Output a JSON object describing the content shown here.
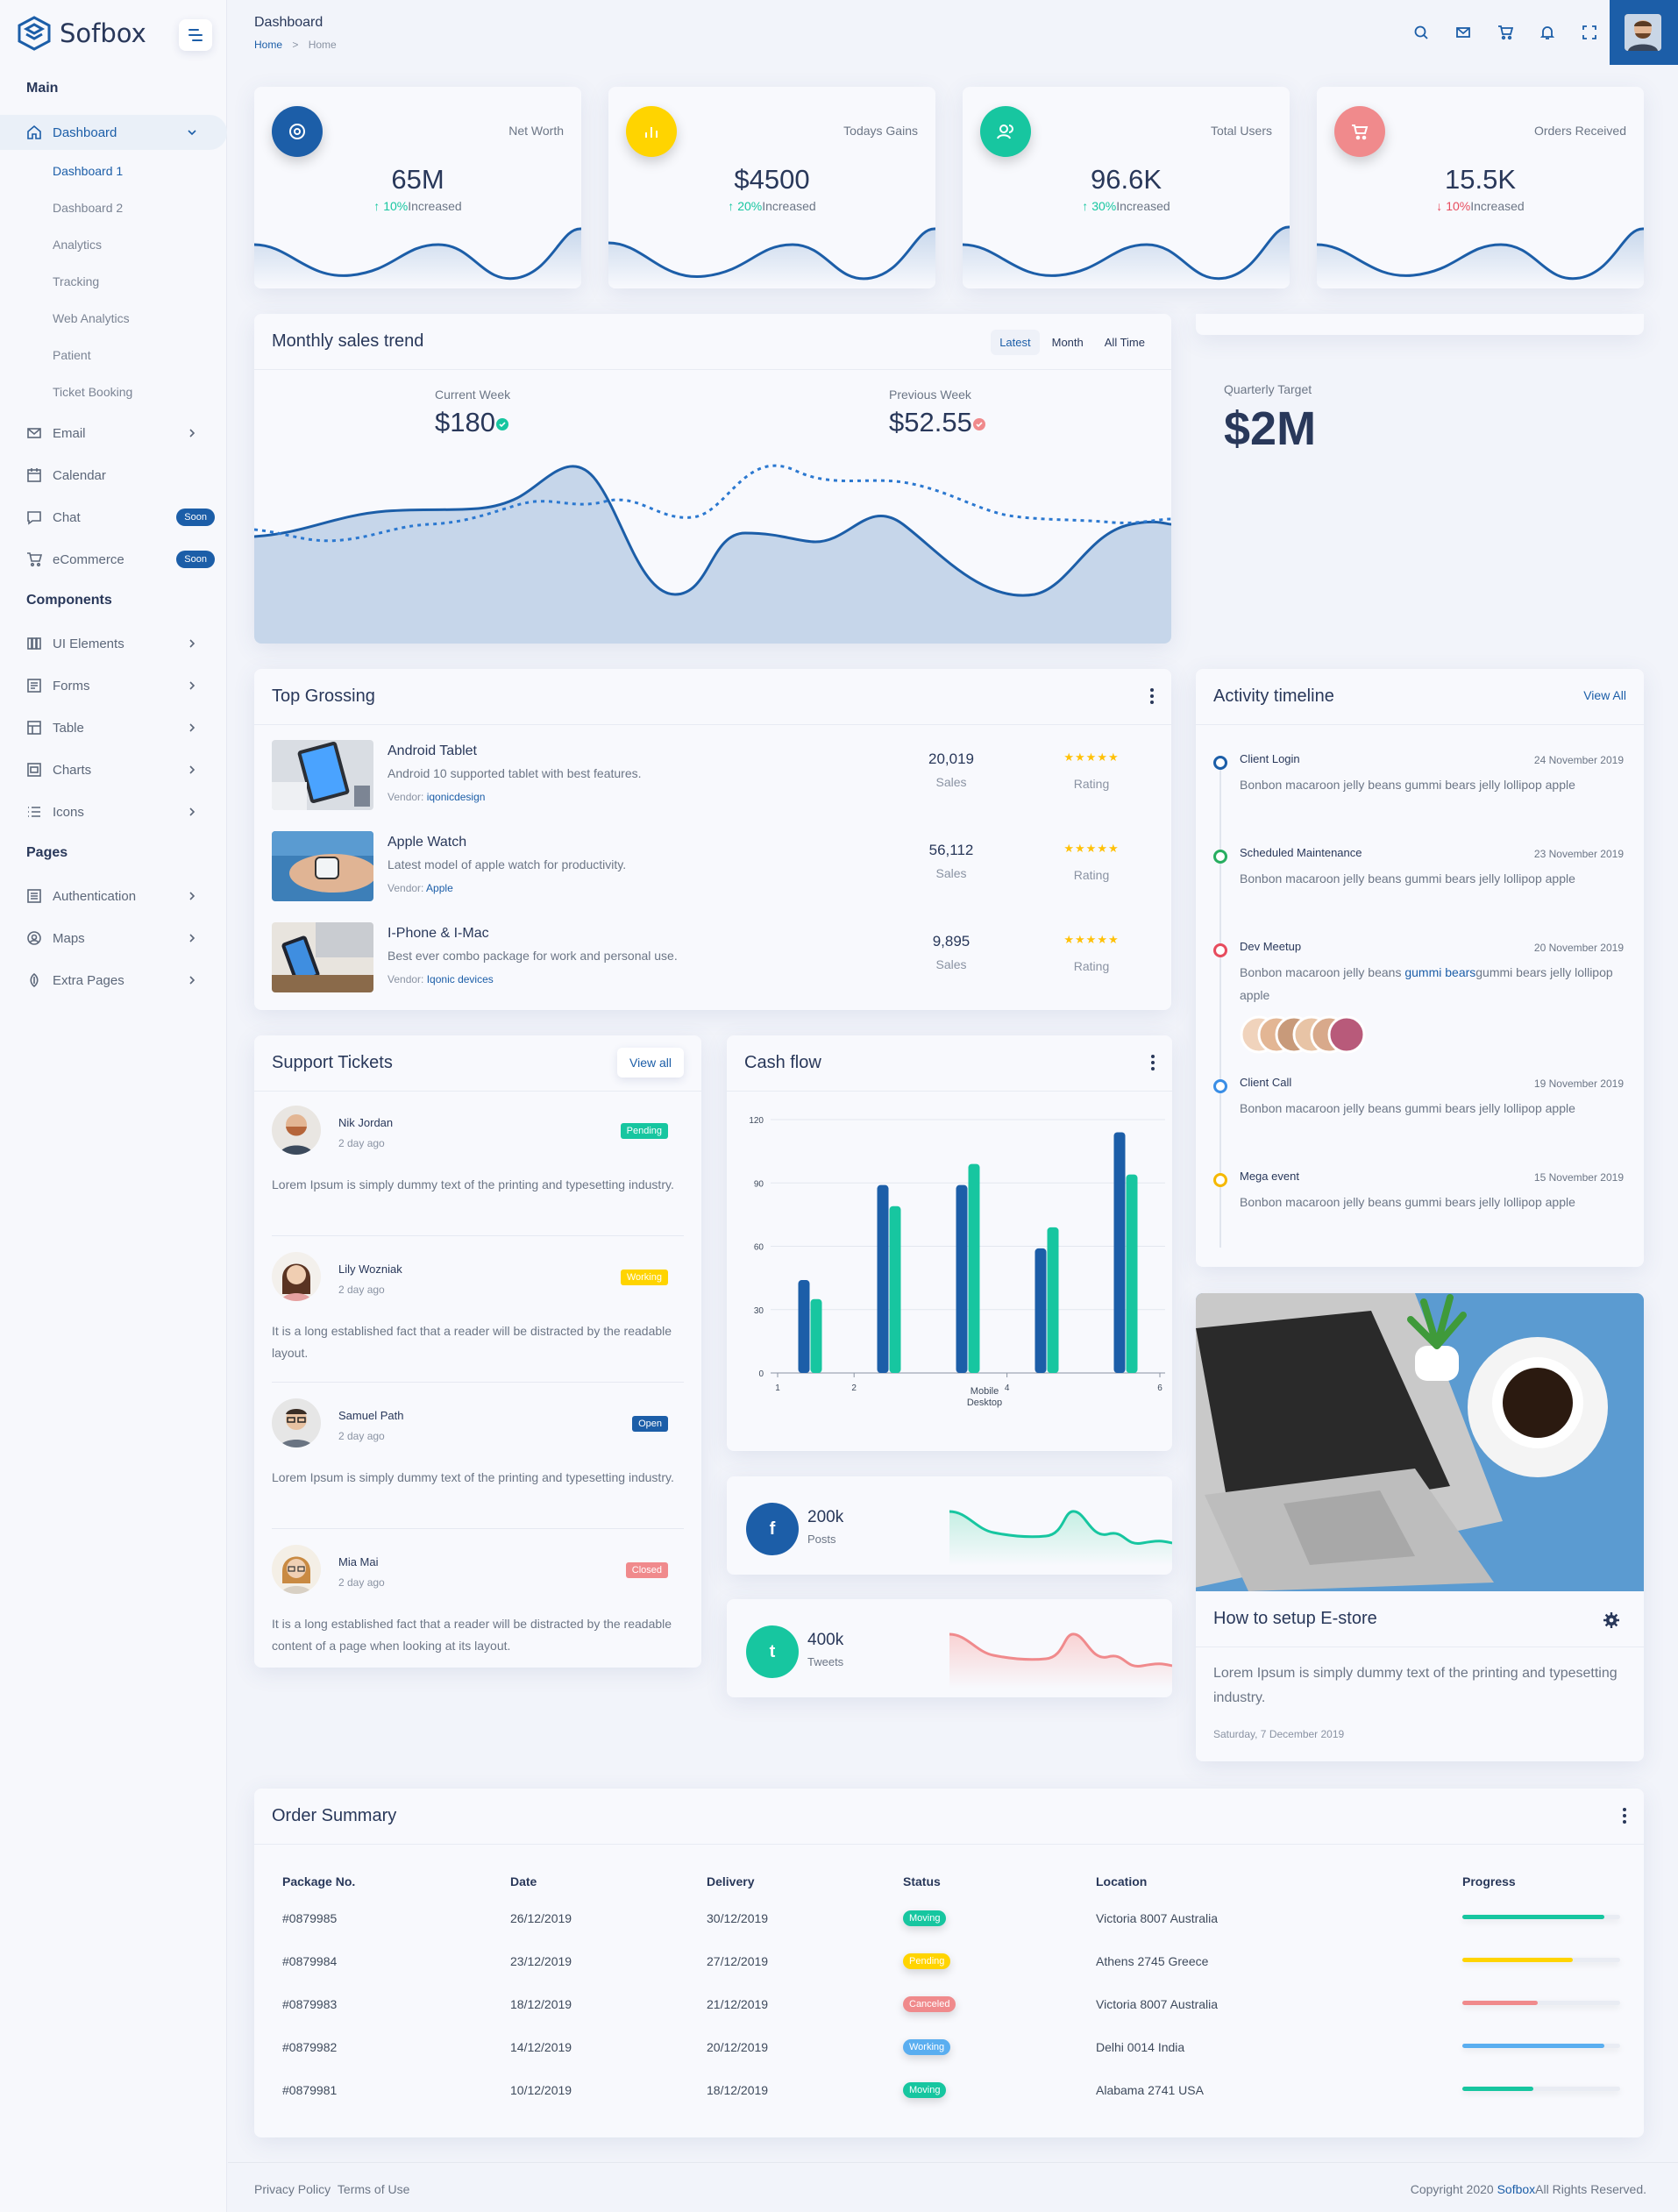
{
  "brand": {
    "name": "Sofbox"
  },
  "header": {
    "title": "Dashboard",
    "crumb_home": "Home",
    "crumb_sep": ">",
    "crumb_current": "Home"
  },
  "sidebar": {
    "section_main": "Main",
    "dashboard": "Dashboard",
    "dashboard_subs": [
      "Dashboard 1",
      "Dashboard 2",
      "Analytics",
      "Tracking",
      "Web Analytics",
      "Patient",
      "Ticket Booking"
    ],
    "email": "Email",
    "calendar": "Calendar",
    "chat": "Chat",
    "ecommerce": "eCommerce",
    "soon": "Soon",
    "section_components": "Components",
    "ui_elements": "UI Elements",
    "forms": "Forms",
    "table": "Table",
    "charts": "Charts",
    "icons": "Icons",
    "section_pages": "Pages",
    "authentication": "Authentication",
    "maps": "Maps",
    "extra_pages": "Extra Pages"
  },
  "stats": [
    {
      "label": "Net Worth",
      "value": "65M",
      "arrow": "↑",
      "pct": "10%",
      "word": "Increased",
      "color": "#1c5ea8",
      "trend": "up"
    },
    {
      "label": "Todays Gains",
      "value": "$4500",
      "arrow": "↑",
      "pct": "20%",
      "word": "Increased",
      "color": "#ffd400",
      "trend": "up"
    },
    {
      "label": "Total Users",
      "value": "96.6K",
      "arrow": "↑",
      "pct": "30%",
      "word": "Increased",
      "color": "#17c6a0",
      "trend": "up"
    },
    {
      "label": "Orders Received",
      "value": "15.5K",
      "arrow": "↓",
      "pct": "10%",
      "word": "Increased",
      "color": "#f08a8c",
      "trend": "down"
    }
  ],
  "sales_trend": {
    "title": "Monthly sales trend",
    "tabs": [
      "Latest",
      "Month",
      "All Time"
    ],
    "current_label": "Current Week",
    "current_value": "$180",
    "previous_label": "Previous Week",
    "previous_value": "$52.55"
  },
  "quarterly": {
    "label": "Quarterly Target",
    "value": "$2M"
  },
  "top_grossing": {
    "title": "Top Grossing",
    "items": [
      {
        "name": "Android Tablet",
        "desc": "Android 10 supported tablet with best features.",
        "vendor_label": "Vendor:",
        "vendor": "iqonicdesign",
        "sales": "20,019",
        "sales_label": "Sales",
        "stars": "★★★★★",
        "rating_label": "Rating"
      },
      {
        "name": "Apple Watch",
        "desc": "Latest model of apple watch for productivity.",
        "vendor_label": "Vendor:",
        "vendor": "Apple",
        "sales": "56,112",
        "sales_label": "Sales",
        "stars": "★★★★★",
        "rating_label": "Rating"
      },
      {
        "name": "I-Phone & I-Mac",
        "desc": "Best ever combo package for work and personal use.",
        "vendor_label": "Vendor:",
        "vendor": "Iqonic devices",
        "sales": "9,895",
        "sales_label": "Sales",
        "stars": "★★★★★",
        "rating_label": "Rating"
      }
    ]
  },
  "timeline": {
    "title": "Activity timeline",
    "view_all": "View All",
    "items": [
      {
        "title": "Client Login",
        "date": "24 November 2019",
        "text": "Bonbon macaroon jelly beans gummi bears jelly lollipop apple",
        "color": "#1c5ea8"
      },
      {
        "title": "Scheduled Maintenance",
        "date": "23 November 2019",
        "text": "Bonbon macaroon jelly beans gummi bears jelly lollipop apple",
        "color": "#27ae60"
      },
      {
        "title": "Dev Meetup",
        "date": "20 November 2019",
        "text_a": "Bonbon macaroon jelly beans ",
        "text_hl": "gummi bears",
        "text_b": "gummi bears jelly lollipop apple",
        "color": "#e74c5e"
      },
      {
        "title": "Client Call",
        "date": "19 November 2019",
        "text": "Bonbon macaroon jelly beans gummi bears jelly lollipop apple",
        "color": "#3a8ee6"
      },
      {
        "title": "Mega event",
        "date": "15 November 2019",
        "text": "Bonbon macaroon jelly beans gummi bears jelly lollipop apple",
        "color": "#f5b800"
      }
    ]
  },
  "tickets": {
    "title": "Support Tickets",
    "view_all": "View all",
    "items": [
      {
        "name": "Nik Jordan",
        "time": "2 day ago",
        "status": "Pending",
        "status_color": "#17c6a0",
        "msg": "Lorem Ipsum is simply dummy text of the printing and typesetting industry."
      },
      {
        "name": "Lily Wozniak",
        "time": "2 day ago",
        "status": "Working",
        "status_color": "#ffd400",
        "msg": "It is a long established fact that a reader will be distracted by the readable layout."
      },
      {
        "name": "Samuel Path",
        "time": "2 day ago",
        "status": "Open",
        "status_color": "#1c5ea8",
        "msg": "Lorem Ipsum is simply dummy text of the printing and typesetting industry."
      },
      {
        "name": "Mia Mai",
        "time": "2 day ago",
        "status": "Closed",
        "status_color": "#f08a8c",
        "msg": "It is a long established fact that a reader will be distracted by the readable content of a page when looking at its layout."
      }
    ]
  },
  "cashflow": {
    "title": "Cash flow"
  },
  "chart_data": {
    "type": "bar",
    "x_tick_labels": [
      "1",
      "2",
      "4",
      "6"
    ],
    "x_caption_lines": [
      "Mobile",
      "Desktop"
    ],
    "y_ticks": [
      0,
      30,
      60,
      90,
      120
    ],
    "ylim": [
      0,
      120
    ],
    "grid": true,
    "series": [
      {
        "values": [
          44,
          89,
          89,
          59,
          114
        ],
        "color": "#1c5ea8"
      },
      {
        "values": [
          35,
          79,
          99,
          69,
          94
        ],
        "color": "#17c6a0"
      }
    ]
  },
  "social": [
    {
      "icon": "facebook-icon",
      "glyph": "f",
      "value": "200k",
      "label": "Posts",
      "color": "#1c5ea8",
      "line_color": "#17c6a0"
    },
    {
      "icon": "twitter-icon",
      "glyph": "t",
      "value": "400k",
      "label": "Tweets",
      "color": "#17c6a0",
      "line_color": "#f08a8c"
    }
  ],
  "blog": {
    "title": "How to setup E-store",
    "text": "Lorem Ipsum is simply dummy text of the printing and typesetting industry.",
    "date": "Saturday, 7 December 2019"
  },
  "orders": {
    "title": "Order Summary",
    "headers": [
      "Package No.",
      "Date",
      "Delivery",
      "Status",
      "Location",
      "Progress"
    ],
    "rows": [
      {
        "pkg": "#0879985",
        "date": "26/12/2019",
        "delivery": "30/12/2019",
        "status": "Moving",
        "color": "#17c6a0",
        "location": "Victoria 8007 Australia",
        "progress": 0.9
      },
      {
        "pkg": "#0879984",
        "date": "23/12/2019",
        "delivery": "27/12/2019",
        "status": "Pending",
        "color": "#ffd400",
        "location": "Athens 2745 Greece",
        "progress": 0.7
      },
      {
        "pkg": "#0879983",
        "date": "18/12/2019",
        "delivery": "21/12/2019",
        "status": "Canceled",
        "color": "#f08a8c",
        "location": "Victoria 8007 Australia",
        "progress": 0.48
      },
      {
        "pkg": "#0879982",
        "date": "14/12/2019",
        "delivery": "20/12/2019",
        "status": "Working",
        "color": "#5aaef0",
        "location": "Delhi 0014 India",
        "progress": 0.9
      },
      {
        "pkg": "#0879981",
        "date": "10/12/2019",
        "delivery": "18/12/2019",
        "status": "Moving",
        "color": "#17c6a0",
        "location": "Alabama 2741 USA",
        "progress": 0.45
      }
    ]
  },
  "footer": {
    "privacy": "Privacy Policy",
    "terms": "Terms of Use",
    "copy_a": "Copyright 2020 ",
    "copy_brand": "Sofbox",
    "copy_b": "All Rights Reserved."
  }
}
